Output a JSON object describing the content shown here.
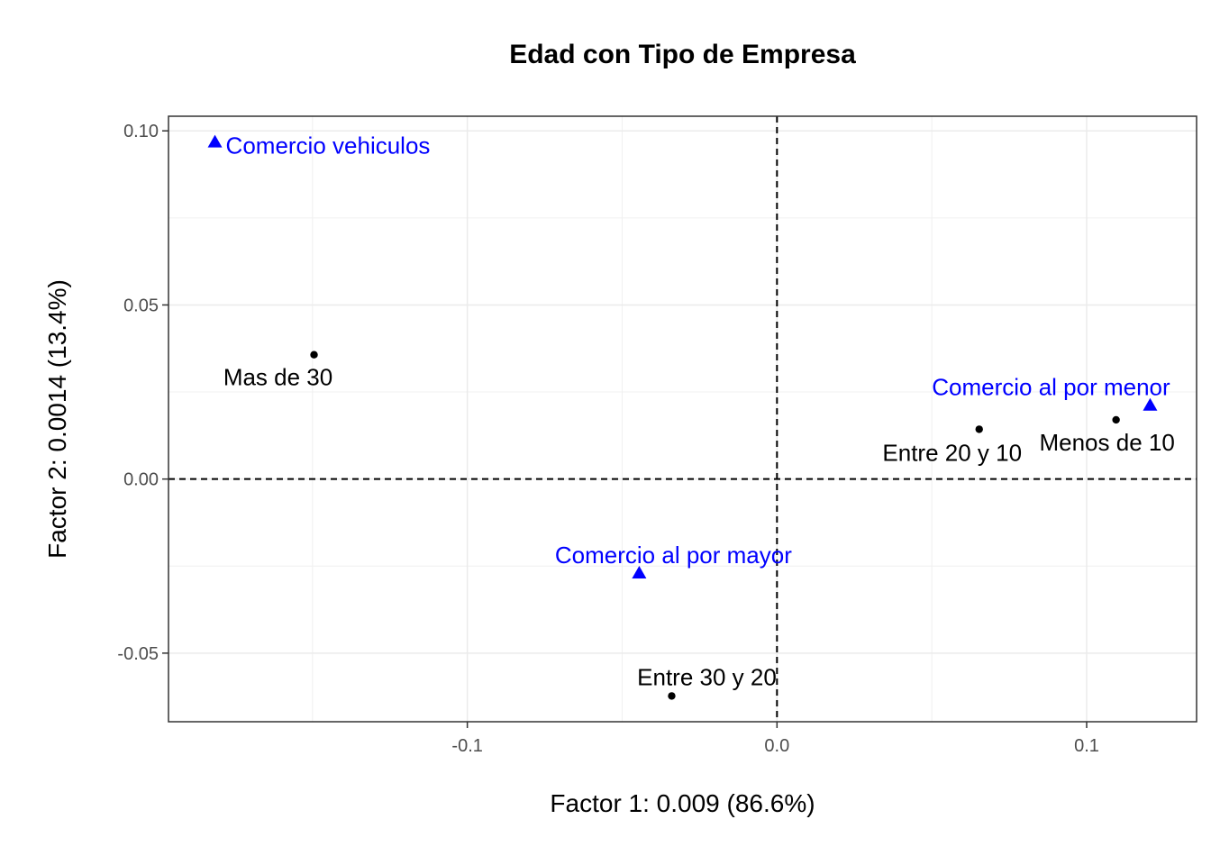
{
  "chart_data": {
    "type": "scatter",
    "title": "Edad con Tipo de Empresa",
    "xlabel": "Factor 1: 0.009 (86.6%)",
    "ylabel": "Factor 2: 0.0014 (13.4%)",
    "xlim": [
      -0.1965,
      0.1355
    ],
    "ylim": [
      -0.0697,
      0.1042
    ],
    "x_ticks": [
      {
        "value": -0.1,
        "label": "-0.1"
      },
      {
        "value": 0.0,
        "label": "0.0"
      },
      {
        "value": 0.1,
        "label": "0.1"
      }
    ],
    "y_ticks": [
      {
        "value": -0.05,
        "label": "-0.05"
      },
      {
        "value": 0.0,
        "label": "0.00"
      },
      {
        "value": 0.05,
        "label": "0.05"
      },
      {
        "value": 0.1,
        "label": "0.10"
      }
    ],
    "reference_lines": {
      "x": 0,
      "y": 0
    },
    "series": [
      {
        "name": "Edad",
        "marker": "circle",
        "color": "#000000",
        "points": [
          {
            "label": "Mas de 30",
            "x": -0.1495,
            "y": 0.0357
          },
          {
            "label": "Entre 20 y 10",
            "x": 0.0653,
            "y": 0.0143
          },
          {
            "label": "Menos de 10",
            "x": 0.1095,
            "y": 0.017
          },
          {
            "label": "Entre 30 y 20",
            "x": -0.034,
            "y": -0.0623
          }
        ]
      },
      {
        "name": "Tipo de Empresa",
        "marker": "triangle",
        "color": "#0000FF",
        "points": [
          {
            "label": "Comercio vehiculos",
            "x": -0.1815,
            "y": 0.0968
          },
          {
            "label": "Comercio al por menor",
            "x": 0.1205,
            "y": 0.0212
          },
          {
            "label": "Comercio al por mayor",
            "x": -0.0445,
            "y": -0.027
          }
        ]
      }
    ]
  }
}
